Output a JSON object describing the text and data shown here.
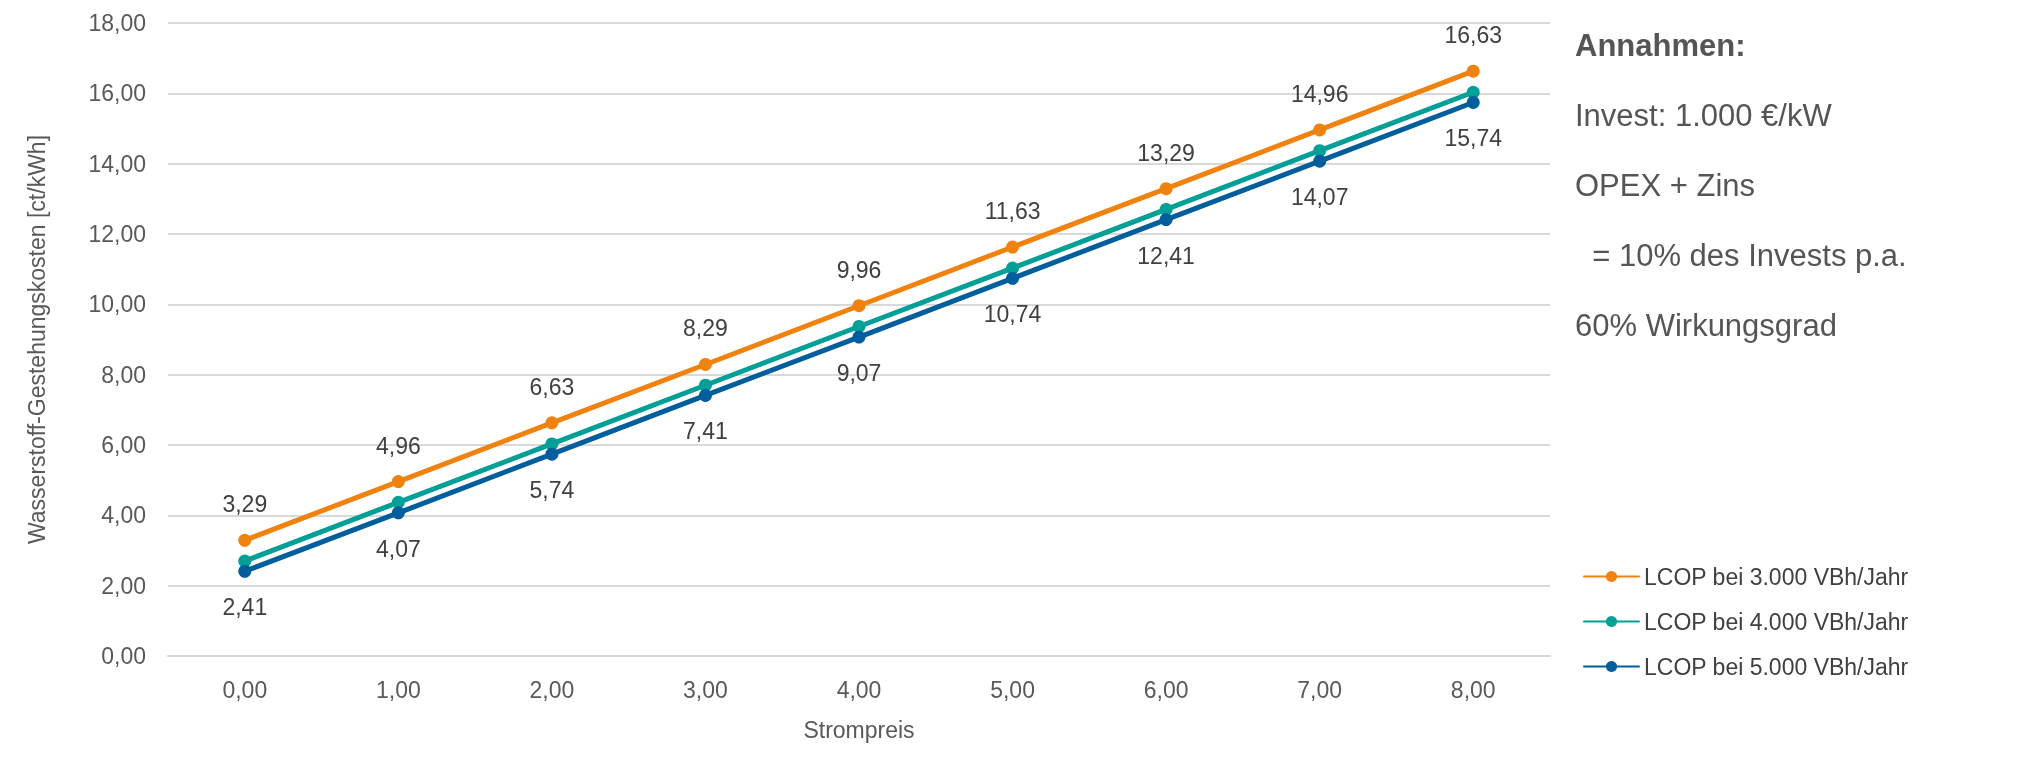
{
  "chart_data": {
    "type": "line",
    "xlabel": "Strompreis",
    "ylabel": "Wasserstoff-Gestehungskosten [ct/kWh]",
    "categories": [
      "0,00",
      "1,00",
      "2,00",
      "3,00",
      "4,00",
      "5,00",
      "6,00",
      "7,00",
      "8,00"
    ],
    "series": [
      {
        "name": "LCOP bei 3.000 VBh/Jahr",
        "color": "#f0820f",
        "values": [
          3.29,
          4.96,
          6.63,
          8.29,
          9.96,
          11.63,
          13.29,
          14.96,
          16.63
        ],
        "value_labels": [
          "3,29",
          "4,96",
          "6,63",
          "8,29",
          "9,96",
          "11,63",
          "13,29",
          "14,96",
          "16,63"
        ]
      },
      {
        "name": "LCOP bei 4.000 VBh/Jahr",
        "color": "#00a096",
        "values": [
          2.7,
          4.37,
          6.03,
          7.7,
          9.37,
          11.03,
          12.7,
          14.37,
          16.03
        ]
      },
      {
        "name": "LCOP bei 5.000 VBh/Jahr",
        "color": "#005e9c",
        "values": [
          2.41,
          4.07,
          5.74,
          7.41,
          9.07,
          10.74,
          12.41,
          14.07,
          15.74
        ],
        "value_labels": [
          "2,41",
          "4,07",
          "5,74",
          "7,41",
          "9,07",
          "10,74",
          "12,41",
          "14,07",
          "15,74"
        ]
      }
    ],
    "ylim": [
      0,
      18
    ],
    "yticks": [
      {
        "value": 0,
        "label": "0,00"
      },
      {
        "value": 2,
        "label": "2,00"
      },
      {
        "value": 4,
        "label": "4,00"
      },
      {
        "value": 6,
        "label": "6,00"
      },
      {
        "value": 8,
        "label": "8,00"
      },
      {
        "value": 10,
        "label": "10,00"
      },
      {
        "value": 12,
        "label": "12,00"
      },
      {
        "value": 14,
        "label": "14,00"
      },
      {
        "value": 16,
        "label": "16,00"
      },
      {
        "value": 18,
        "label": "18,00"
      }
    ],
    "annotations": [
      "Annahmen:",
      "Invest: 1.000 €/kW",
      "OPEX + Zins",
      "  = 10% des Invests p.a.",
      "60% Wirkungsgrad"
    ],
    "grid": "y",
    "legend": "bottom right",
    "marker": "circle",
    "line_style": "solid"
  }
}
